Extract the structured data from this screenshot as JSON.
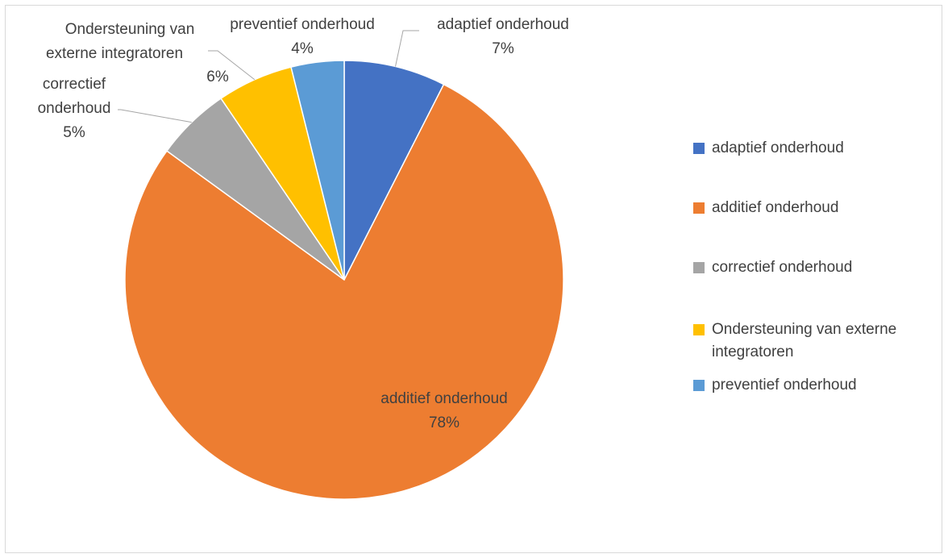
{
  "chart_data": {
    "type": "pie",
    "title": "",
    "slices": [
      {
        "name": "adaptief onderhoud",
        "label": "adaptief onderhoud",
        "pct_label": "7%",
        "value": 7.5,
        "color": "#4472C4"
      },
      {
        "name": "additief onderhoud",
        "label": "additief onderhoud",
        "pct_label": "78%",
        "value": 77.5,
        "color": "#ED7D31"
      },
      {
        "name": "correctief onderhoud",
        "label_lines": [
          "correctief",
          "onderhoud"
        ],
        "pct_label": "5%",
        "value": 5.5,
        "color": "#A5A5A5"
      },
      {
        "name": "Ondersteuning van externe integratoren",
        "label_lines": [
          "Ondersteuning van",
          "externe integratoren"
        ],
        "pct_label": "6%",
        "value": 5.6,
        "color": "#FFC000"
      },
      {
        "name": "preventief onderhoud",
        "label": "preventief onderhoud",
        "pct_label": "4%",
        "value": 3.9,
        "color": "#5B9BD5"
      }
    ],
    "legend_position": "right",
    "legend": [
      {
        "text": "adaptief onderhoud",
        "color": "#4472C4"
      },
      {
        "text": "additief onderhoud",
        "color": "#ED7D31"
      },
      {
        "text": "correctief onderhoud",
        "color": "#A5A5A5"
      },
      {
        "text": "Ondersteuning van externe integratoren",
        "color": "#FFC000"
      },
      {
        "text": "preventief onderhoud",
        "color": "#5B9BD5"
      }
    ]
  }
}
